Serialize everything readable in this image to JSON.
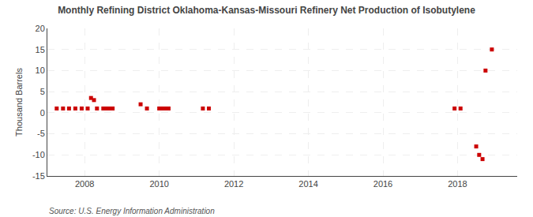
{
  "chart_data": {
    "type": "scatter",
    "title": "Monthly Refining District Oklahoma-Kansas-Missouri Refinery Net Production of Isobutylene",
    "ylabel": "Thousand Barrels",
    "source": "Source: U.S. Energy Information Administration",
    "x": [
      2007.25,
      2007.42,
      2007.58,
      2007.75,
      2007.92,
      2008.08,
      2008.17,
      2008.25,
      2008.33,
      2008.5,
      2008.58,
      2008.67,
      2008.75,
      2009.5,
      2009.67,
      2010.0,
      2010.08,
      2010.17,
      2010.25,
      2011.17,
      2011.33,
      2017.92,
      2018.08,
      2018.5,
      2018.58,
      2018.67,
      2018.75,
      2018.92
    ],
    "values": [
      1.0,
      1.0,
      1.0,
      1.0,
      1.0,
      1.0,
      3.5,
      3.0,
      1.0,
      1.0,
      1.0,
      1.0,
      1.0,
      2.0,
      1.0,
      1.0,
      1.0,
      1.0,
      1.0,
      1.0,
      1.0,
      1.0,
      1.0,
      -8.0,
      -10.0,
      -11.0,
      10.0,
      15.0
    ],
    "color": "#cc0000",
    "marker": "square",
    "xlim": [
      2007.0,
      2019.6
    ],
    "xticks": [
      2008,
      2010,
      2012,
      2014,
      2016,
      2018
    ],
    "ylim": [
      -15,
      20
    ],
    "yticks": [
      -15,
      -10,
      -5,
      0,
      5,
      10,
      15,
      20
    ],
    "grid": true
  }
}
